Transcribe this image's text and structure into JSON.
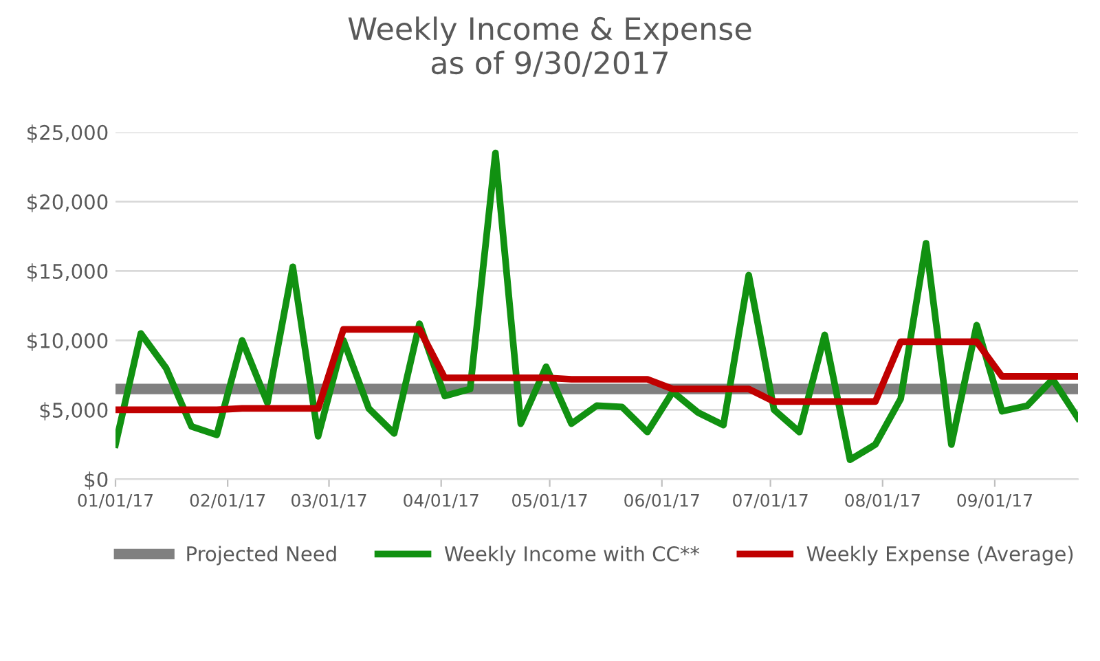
{
  "chart_data": {
    "type": "line",
    "title": "Weekly Income & Expense\nas of 9/30/2017",
    "x": [
      "2017-01-01",
      "2017-01-08",
      "2017-01-15",
      "2017-01-22",
      "2017-01-29",
      "2017-02-05",
      "2017-02-12",
      "2017-02-19",
      "2017-02-26",
      "2017-03-05",
      "2017-03-12",
      "2017-03-19",
      "2017-03-26",
      "2017-04-02",
      "2017-04-09",
      "2017-04-16",
      "2017-04-23",
      "2017-04-30",
      "2017-05-07",
      "2017-05-14",
      "2017-05-21",
      "2017-05-28",
      "2017-06-04",
      "2017-06-11",
      "2017-06-18",
      "2017-06-25",
      "2017-07-02",
      "2017-07-09",
      "2017-07-16",
      "2017-07-23",
      "2017-07-30",
      "2017-08-06",
      "2017-08-13",
      "2017-08-20",
      "2017-08-27",
      "2017-09-03",
      "2017-09-10",
      "2017-09-17",
      "2017-09-24"
    ],
    "series": [
      {
        "name": "Projected Need",
        "color": "#808080",
        "values": [
          6500,
          6500,
          6500,
          6500,
          6500,
          6500,
          6500,
          6500,
          6500,
          6500,
          6500,
          6500,
          6500,
          6500,
          6500,
          6500,
          6500,
          6500,
          6500,
          6500,
          6500,
          6500,
          6500,
          6500,
          6500,
          6500,
          6500,
          6500,
          6500,
          6500,
          6500,
          6500,
          6500,
          6500,
          6500,
          6500,
          6500,
          6500,
          6500
        ]
      },
      {
        "name": "Weekly Income with CC**",
        "color": "#119111",
        "values": [
          2500,
          10500,
          8000,
          3800,
          3200,
          10000,
          5500,
          15300,
          3100,
          10000,
          5100,
          3300,
          11200,
          6000,
          6500,
          23500,
          4000,
          8100,
          4000,
          5300,
          5200,
          3400,
          6300,
          4800,
          3900,
          14700,
          5000,
          3400,
          10400,
          1400,
          2500,
          5800,
          17000,
          2500,
          11100,
          4900,
          5300,
          7200,
          4400
        ]
      },
      {
        "name": "Weekly Expense (Average)",
        "color": "#c00000",
        "values": [
          5000,
          5000,
          5000,
          5000,
          5000,
          5100,
          5100,
          5100,
          5100,
          10800,
          10800,
          10800,
          10800,
          7300,
          7300,
          7300,
          7300,
          7300,
          7200,
          7200,
          7200,
          7200,
          6500,
          6500,
          6500,
          6500,
          5600,
          5600,
          5600,
          5600,
          5600,
          9900,
          9900,
          9900,
          9900,
          7400,
          7400,
          7400,
          7400
        ]
      }
    ],
    "xlim": [
      "2017-01-01",
      "2017-09-24"
    ],
    "xticks": [
      {
        "value": "2017-01-01",
        "label": "01/01/17"
      },
      {
        "value": "2017-02-01",
        "label": "02/01/17"
      },
      {
        "value": "2017-03-01",
        "label": "03/01/17"
      },
      {
        "value": "2017-04-01",
        "label": "04/01/17"
      },
      {
        "value": "2017-05-01",
        "label": "05/01/17"
      },
      {
        "value": "2017-06-01",
        "label": "06/01/17"
      },
      {
        "value": "2017-07-01",
        "label": "07/01/17"
      },
      {
        "value": "2017-08-01",
        "label": "08/01/17"
      },
      {
        "value": "2017-09-01",
        "label": "09/01/17"
      }
    ],
    "ylim": [
      0,
      25000
    ],
    "yticks": [
      {
        "value": 0,
        "label": "$0"
      },
      {
        "value": 5000,
        "label": "$5,000"
      },
      {
        "value": 10000,
        "label": "$10,000"
      },
      {
        "value": 15000,
        "label": "$15,000"
      },
      {
        "value": 20000,
        "label": "$20,000"
      },
      {
        "value": 25000,
        "label": "$25,000"
      }
    ],
    "grid": "y",
    "legend": "bottom",
    "marker": "none",
    "line_style": "solid"
  }
}
